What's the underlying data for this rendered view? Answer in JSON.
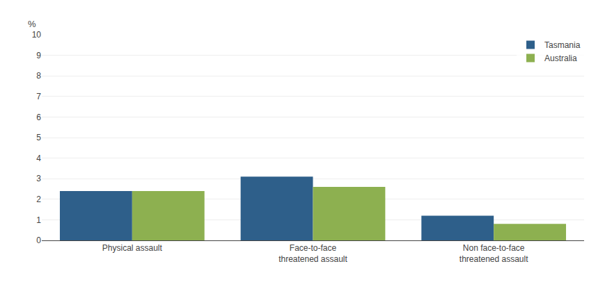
{
  "chart_data": {
    "type": "bar",
    "ylabel": "%",
    "categories": [
      "Physical assault",
      "Face-to-face\nthreatened assault",
      "Non face-to-face\nthreatened assault"
    ],
    "series": [
      {
        "name": "Tasmania",
        "color": "#2E5F8A",
        "values": [
          2.4,
          3.1,
          1.2
        ]
      },
      {
        "name": "Australia",
        "color": "#8DB050",
        "values": [
          2.4,
          2.6,
          0.8
        ]
      }
    ],
    "ylim": [
      0,
      10
    ],
    "yticks": [
      0,
      1,
      2,
      3,
      4,
      5,
      6,
      7,
      8,
      9,
      10
    ],
    "grid": true,
    "legend": "upper right"
  }
}
